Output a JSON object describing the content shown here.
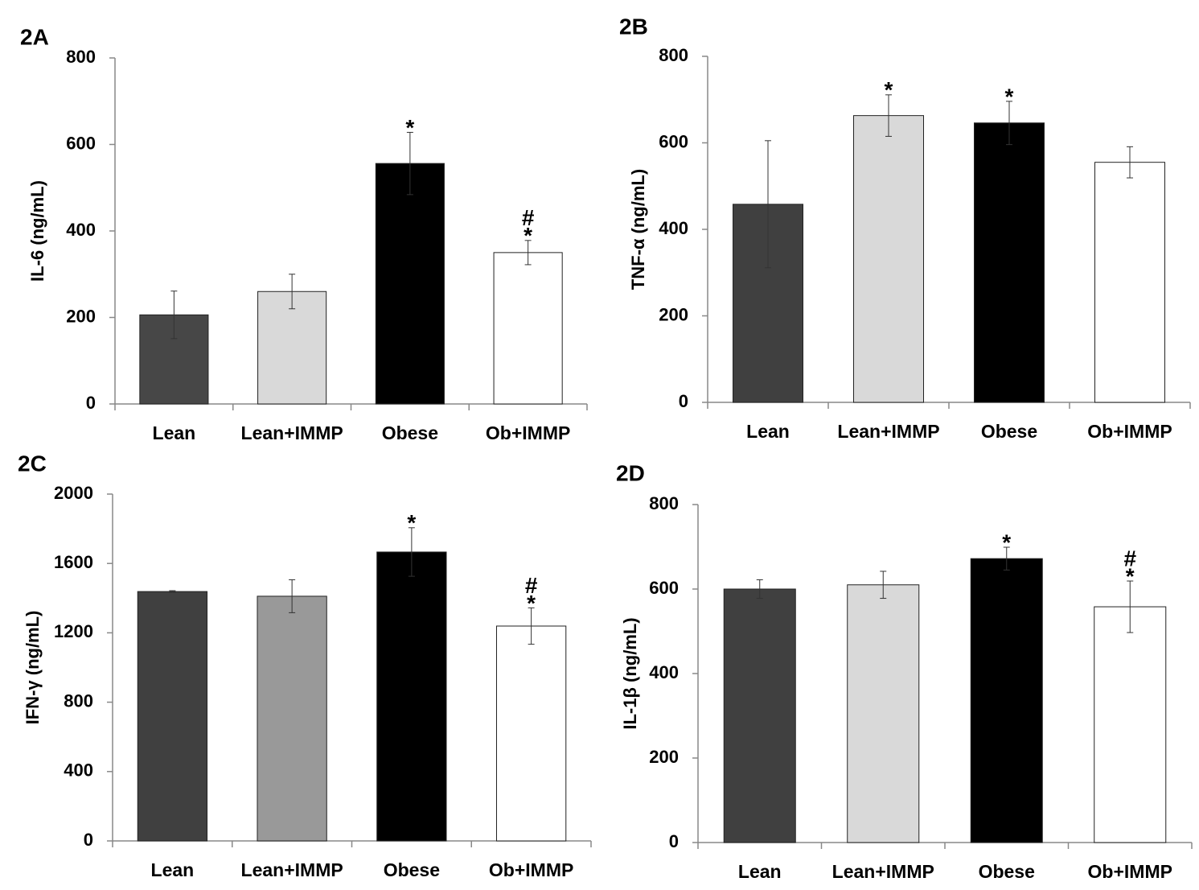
{
  "chart_data": [
    {
      "type": "bar",
      "title": "2A",
      "y_label": "IL-6 (ng/mL)",
      "categories": [
        "Lean",
        "Lean+IMMP",
        "Obese",
        "Ob+IMMP"
      ],
      "values": [
        206,
        260,
        556,
        350
      ],
      "errors": [
        55,
        40,
        72,
        28
      ],
      "colors": [
        "#474747",
        "#d9d9d9",
        "#000000",
        "#ffffff"
      ],
      "bar_labels": [
        null,
        null,
        [
          "*"
        ],
        [
          "#",
          "*"
        ]
      ],
      "ylim": [
        0,
        800
      ],
      "yticks": [
        0,
        200,
        400,
        600,
        800
      ]
    },
    {
      "type": "bar",
      "title": "2B",
      "y_label": "TNF-α (ng/mL)",
      "categories": [
        "Lean",
        "Lean+IMMP",
        "Obese",
        "Ob+IMMP"
      ],
      "values": [
        458,
        663,
        646,
        555
      ],
      "errors": [
        147,
        48,
        50,
        36
      ],
      "colors": [
        "#404040",
        "#d9d9d9",
        "#000000",
        "#ffffff"
      ],
      "bar_labels": [
        null,
        [
          "*"
        ],
        [
          "*"
        ],
        null
      ],
      "ylim": [
        0,
        800
      ],
      "yticks": [
        0,
        200,
        400,
        600,
        800
      ]
    },
    {
      "type": "bar",
      "title": "2C",
      "y_label": "IFN-γ (ng/mL)",
      "categories": [
        "Lean",
        "Lean+IMMP",
        "Obese",
        "Ob+IMMP"
      ],
      "values": [
        1438,
        1411,
        1666,
        1239
      ],
      "errors": [
        5,
        95,
        140,
        105
      ],
      "colors": [
        "#404040",
        "#999999",
        "#000000",
        "#ffffff"
      ],
      "bar_labels": [
        null,
        null,
        [
          "*"
        ],
        [
          "#",
          "*"
        ]
      ],
      "ylim": [
        0,
        2000
      ],
      "yticks": [
        0,
        400,
        800,
        1200,
        1600,
        2000
      ]
    },
    {
      "type": "bar",
      "title": "2D",
      "y_label": "IL-1β (ng/mL)",
      "categories": [
        "Lean",
        "Lean+IMMP",
        "Obese",
        "Ob+IMMP"
      ],
      "values": [
        600,
        610,
        672,
        558
      ],
      "errors": [
        22,
        32,
        27,
        61
      ],
      "colors": [
        "#404040",
        "#d9d9d9",
        "#000000",
        "#ffffff"
      ],
      "bar_labels": [
        null,
        null,
        [
          "*"
        ],
        [
          "#",
          "*"
        ]
      ],
      "ylim": [
        0,
        800
      ],
      "yticks": [
        0,
        200,
        400,
        600,
        800
      ]
    }
  ]
}
